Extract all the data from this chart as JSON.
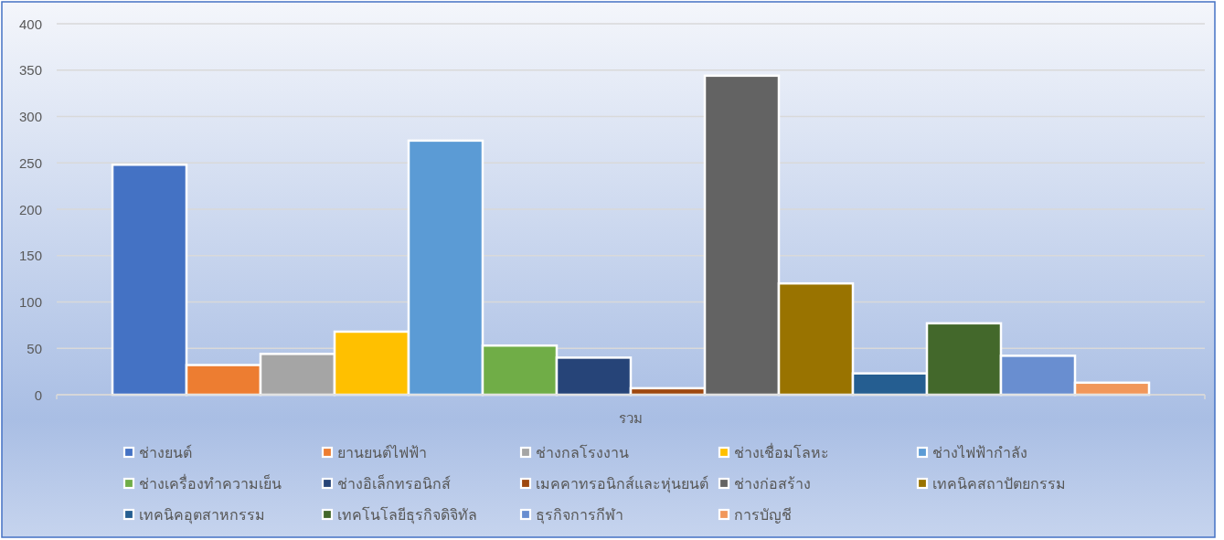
{
  "chart_data": {
    "type": "bar",
    "categories": [
      "รวม"
    ],
    "series": [
      {
        "name": "ช่างยนต์",
        "color": "#4472c4",
        "values": [
          248
        ]
      },
      {
        "name": "ยานยนต์ไฟฟ้า",
        "color": "#ed7d31",
        "values": [
          32
        ]
      },
      {
        "name": "ช่างกลโรงงาน",
        "color": "#a5a5a5",
        "values": [
          44
        ]
      },
      {
        "name": "ช่างเชื่อมโลหะ",
        "color": "#ffc000",
        "values": [
          68
        ]
      },
      {
        "name": "ช่างไฟฟ้ากำลัง",
        "color": "#5b9bd5",
        "values": [
          274
        ]
      },
      {
        "name": "ช่างเครื่องทำความเย็น",
        "color": "#70ad47",
        "values": [
          53
        ]
      },
      {
        "name": "ช่างอิเล็กทรอนิกส์",
        "color": "#264478",
        "values": [
          40
        ]
      },
      {
        "name": "เมคคาทรอนิกส์และหุ่นยนต์",
        "color": "#9e480e",
        "values": [
          7
        ]
      },
      {
        "name": "ช่างก่อสร้าง",
        "color": "#636363",
        "values": [
          344
        ]
      },
      {
        "name": "เทคนิคสถาปัตยกรรม",
        "color": "#997300",
        "values": [
          120
        ]
      },
      {
        "name": "เทคนิคอุตสาหกรรม",
        "color": "#255e91",
        "values": [
          23
        ]
      },
      {
        "name": "เทคโนโลยีธุรกิจดิจิทัล",
        "color": "#43682b",
        "values": [
          77
        ]
      },
      {
        "name": "ธุรกิจการกีฬา",
        "color": "#698ed0",
        "values": [
          42
        ]
      },
      {
        "name": "การบัญชี",
        "color": "#f1975a",
        "values": [
          13
        ]
      }
    ],
    "ylim": [
      0,
      400
    ],
    "yticks": [
      0,
      50,
      100,
      150,
      200,
      250,
      300,
      350,
      400
    ],
    "grid": "y",
    "legend": "bottom"
  }
}
